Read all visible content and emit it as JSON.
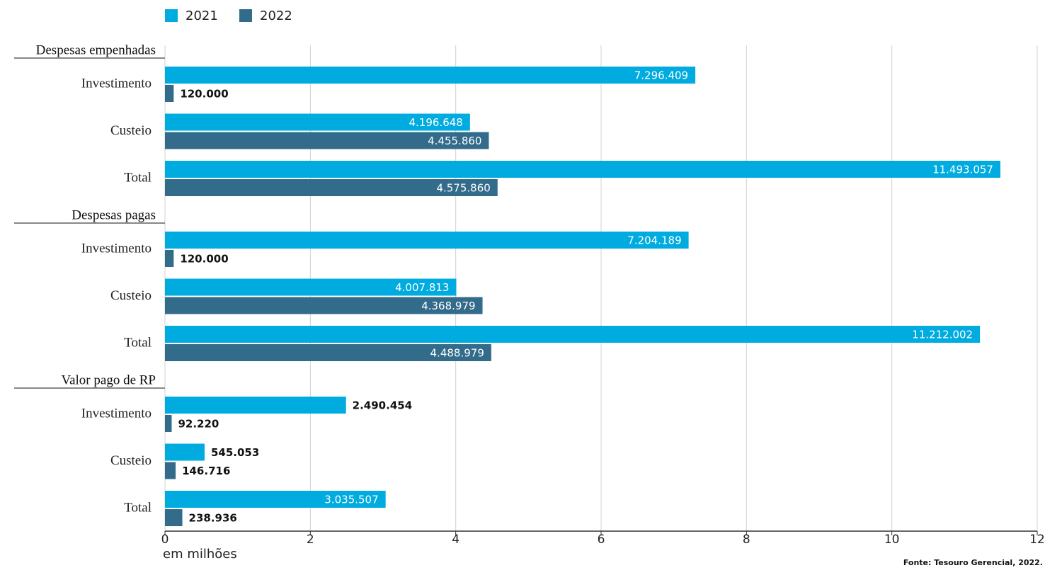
{
  "chart_data": {
    "type": "grouped-hbar",
    "groups": [
      {
        "name": "Despesas empenhadas",
        "categories": [
          "Investimento",
          "Custeio",
          "Total"
        ]
      },
      {
        "name": "Despesas pagas",
        "categories": [
          "Investimento",
          "Custeio",
          "Total"
        ]
      },
      {
        "name": "Valor pago de RP",
        "categories": [
          "Investimento",
          "Custeio",
          "Total"
        ]
      }
    ],
    "series": [
      {
        "name": "2021",
        "color": "#00abdf",
        "values": [
          7.296409,
          4.196648,
          11.493057,
          7.204189,
          4.007813,
          11.212002,
          2.490454,
          0.545053,
          3.035507
        ],
        "value_labels": [
          "7.296.409",
          "4.196.648",
          "11.493.057",
          "7.204.189",
          "4.007.813",
          "11.212.002",
          "2.490.454",
          "545.053",
          "3.035.507"
        ]
      },
      {
        "name": "2022",
        "color": "#336b8b",
        "values": [
          0.12,
          4.45586,
          4.57586,
          0.12,
          4.368979,
          4.488979,
          0.09222,
          0.146716,
          0.238936
        ],
        "value_labels": [
          "120.000",
          "4.455.860",
          "4.575.860",
          "120.000",
          "4.368.979",
          "4.488.979",
          "92.220",
          "146.716",
          "238.936"
        ]
      }
    ],
    "xlim": [
      0,
      12
    ],
    "xticks": [
      0,
      2,
      4,
      6,
      8,
      10,
      12
    ],
    "grid": true,
    "xlabel": "em milhões",
    "source": "Fonte: Tesouro Gerencial, 2022."
  }
}
